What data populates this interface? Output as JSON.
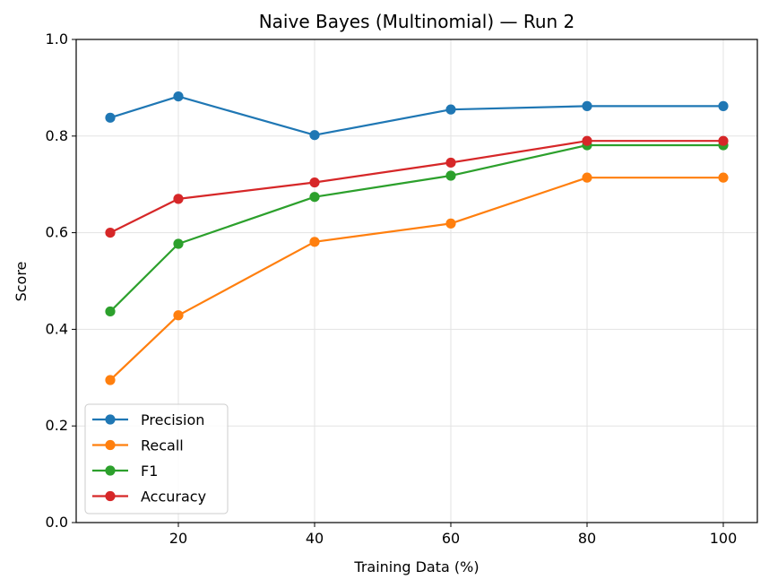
{
  "chart_data": {
    "type": "line",
    "title": "Naive Bayes (Multinomial) — Run 2",
    "xlabel": "Training Data (%)",
    "ylabel": "Score",
    "x": [
      10,
      20,
      40,
      60,
      80,
      100
    ],
    "xlim": [
      5,
      105
    ],
    "ylim": [
      0.0,
      1.0
    ],
    "xticks": [
      20,
      40,
      60,
      80,
      100
    ],
    "xtick_labels": [
      "20",
      "40",
      "60",
      "80",
      "100"
    ],
    "yticks": [
      0.0,
      0.2,
      0.4,
      0.6,
      0.8,
      1.0
    ],
    "ytick_labels": [
      "0.0",
      "0.2",
      "0.4",
      "0.6",
      "0.8",
      "1.0"
    ],
    "grid": true,
    "legend_position": "lower-left",
    "series": [
      {
        "name": "Precision",
        "color": "#1f77b4",
        "values": [
          0.838,
          0.882,
          0.802,
          0.855,
          0.862,
          0.862
        ]
      },
      {
        "name": "Recall",
        "color": "#ff7f0e",
        "values": [
          0.295,
          0.429,
          0.581,
          0.619,
          0.714,
          0.714
        ]
      },
      {
        "name": "F1",
        "color": "#2ca02c",
        "values": [
          0.437,
          0.577,
          0.674,
          0.718,
          0.781,
          0.781
        ]
      },
      {
        "name": "Accuracy",
        "color": "#d62728",
        "values": [
          0.6,
          0.67,
          0.704,
          0.745,
          0.79,
          0.79
        ]
      }
    ]
  }
}
